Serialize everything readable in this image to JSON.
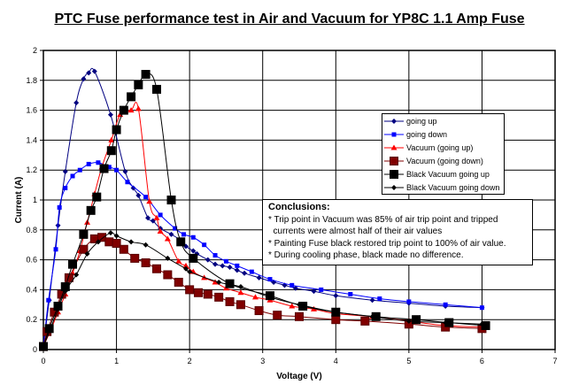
{
  "chart_data": {
    "type": "line",
    "title": "PTC Fuse performance test in Air and Vacuum for YP8C 1.1 Amp Fuse",
    "xlabel": "Voltage (V)",
    "ylabel": "Current (A)",
    "xlim": [
      0,
      7
    ],
    "ylim": [
      0,
      2
    ],
    "xticks": [
      "0",
      "1",
      "2",
      "3",
      "4",
      "5",
      "6",
      "7"
    ],
    "yticks": [
      "0",
      "0.2",
      "0.4",
      "0.6",
      "0.8",
      "1",
      "1.2",
      "1.4",
      "1.6",
      "1.8",
      "2"
    ],
    "grid": true,
    "legend_position": "right",
    "series": [
      {
        "name": "going up",
        "color": "#000080",
        "marker": "diamond",
        "points": [
          [
            0,
            0.02
          ],
          [
            0.08,
            0.33
          ],
          [
            0.2,
            0.83
          ],
          [
            0.3,
            1.19
          ],
          [
            0.45,
            1.65
          ],
          [
            0.55,
            1.81
          ],
          [
            0.62,
            1.85
          ],
          [
            0.7,
            1.86
          ],
          [
            0.92,
            1.57
          ],
          [
            1.12,
            1.19
          ],
          [
            1.23,
            1.08
          ],
          [
            1.3,
            1.03
          ],
          [
            1.43,
            0.88
          ],
          [
            1.5,
            0.86
          ],
          [
            1.6,
            0.81
          ],
          [
            1.75,
            0.77
          ],
          [
            1.88,
            0.73
          ],
          [
            1.95,
            0.69
          ],
          [
            2.05,
            0.66
          ],
          [
            2.1,
            0.64
          ],
          [
            2.25,
            0.6
          ],
          [
            2.35,
            0.57
          ],
          [
            2.45,
            0.56
          ],
          [
            2.55,
            0.55
          ],
          [
            2.65,
            0.53
          ],
          [
            2.75,
            0.51
          ],
          [
            2.95,
            0.48
          ],
          [
            3.15,
            0.45
          ],
          [
            3.3,
            0.43
          ],
          [
            3.45,
            0.41
          ],
          [
            3.7,
            0.39
          ],
          [
            4.0,
            0.36
          ],
          [
            4.5,
            0.33
          ],
          [
            5.0,
            0.31
          ],
          [
            5.5,
            0.29
          ],
          [
            6.0,
            0.28
          ]
        ]
      },
      {
        "name": "going down",
        "color": "#0000FF",
        "marker": "square",
        "points": [
          [
            0,
            0.02
          ],
          [
            0.07,
            0.33
          ],
          [
            0.17,
            0.67
          ],
          [
            0.22,
            0.95
          ],
          [
            0.3,
            1.08
          ],
          [
            0.4,
            1.16
          ],
          [
            0.5,
            1.2
          ],
          [
            0.62,
            1.24
          ],
          [
            0.75,
            1.25
          ],
          [
            0.9,
            1.22
          ],
          [
            1.0,
            1.2
          ],
          [
            1.15,
            1.12
          ],
          [
            1.4,
            1.02
          ],
          [
            1.6,
            0.9
          ],
          [
            1.8,
            0.81
          ],
          [
            1.92,
            0.77
          ],
          [
            2.05,
            0.75
          ],
          [
            2.2,
            0.7
          ],
          [
            2.35,
            0.63
          ],
          [
            2.5,
            0.59
          ],
          [
            2.65,
            0.56
          ],
          [
            2.85,
            0.52
          ],
          [
            3.1,
            0.47
          ],
          [
            3.4,
            0.43
          ],
          [
            3.8,
            0.4
          ],
          [
            4.2,
            0.37
          ],
          [
            4.6,
            0.34
          ],
          [
            5.0,
            0.32
          ],
          [
            5.5,
            0.3
          ],
          [
            6.0,
            0.28
          ]
        ]
      },
      {
        "name": "Vacuum (going up)",
        "color": "#FF0000",
        "marker": "triangle",
        "points": [
          [
            0,
            0.02
          ],
          [
            0.1,
            0.13
          ],
          [
            0.2,
            0.25
          ],
          [
            0.3,
            0.37
          ],
          [
            0.4,
            0.51
          ],
          [
            0.5,
            0.66
          ],
          [
            0.6,
            0.85
          ],
          [
            0.7,
            1.04
          ],
          [
            0.8,
            1.22
          ],
          [
            0.93,
            1.4
          ],
          [
            1.05,
            1.57
          ],
          [
            1.2,
            1.6
          ],
          [
            1.3,
            1.61
          ],
          [
            1.45,
            0.99
          ],
          [
            1.55,
            0.88
          ],
          [
            1.6,
            0.79
          ],
          [
            1.7,
            0.74
          ],
          [
            1.85,
            0.59
          ],
          [
            1.95,
            0.56
          ],
          [
            2.05,
            0.52
          ],
          [
            2.2,
            0.48
          ],
          [
            2.35,
            0.45
          ],
          [
            2.5,
            0.41
          ],
          [
            2.7,
            0.38
          ],
          [
            2.9,
            0.35
          ],
          [
            3.1,
            0.33
          ],
          [
            3.4,
            0.29
          ],
          [
            3.7,
            0.27
          ],
          [
            4.0,
            0.24
          ],
          [
            4.5,
            0.22
          ],
          [
            5.0,
            0.19
          ],
          [
            5.5,
            0.16
          ],
          [
            6.0,
            0.15
          ]
        ]
      },
      {
        "name": "Vacuum (going down)",
        "color": "#800000",
        "marker": "bigsquare",
        "points": [
          [
            0,
            0.02
          ],
          [
            0.05,
            0.12
          ],
          [
            0.15,
            0.25
          ],
          [
            0.25,
            0.37
          ],
          [
            0.35,
            0.48
          ],
          [
            0.55,
            0.67
          ],
          [
            0.7,
            0.74
          ],
          [
            0.8,
            0.75
          ],
          [
            0.9,
            0.72
          ],
          [
            1.0,
            0.71
          ],
          [
            1.1,
            0.67
          ],
          [
            1.25,
            0.61
          ],
          [
            1.4,
            0.58
          ],
          [
            1.55,
            0.54
          ],
          [
            1.7,
            0.5
          ],
          [
            1.85,
            0.45
          ],
          [
            2.0,
            0.4
          ],
          [
            2.12,
            0.38
          ],
          [
            2.25,
            0.37
          ],
          [
            2.4,
            0.35
          ],
          [
            2.55,
            0.32
          ],
          [
            2.7,
            0.3
          ],
          [
            2.95,
            0.26
          ],
          [
            3.2,
            0.23
          ],
          [
            3.5,
            0.22
          ],
          [
            4.0,
            0.2
          ],
          [
            4.4,
            0.19
          ],
          [
            5.0,
            0.17
          ],
          [
            5.5,
            0.15
          ],
          [
            6.0,
            0.14
          ]
        ]
      },
      {
        "name": "Black Vacuum going up",
        "color": "#000000",
        "marker": "bigsquare",
        "points": [
          [
            0,
            0.02
          ],
          [
            0.08,
            0.14
          ],
          [
            0.2,
            0.29
          ],
          [
            0.3,
            0.42
          ],
          [
            0.4,
            0.57
          ],
          [
            0.55,
            0.77
          ],
          [
            0.65,
            0.93
          ],
          [
            0.73,
            1.02
          ],
          [
            0.83,
            1.21
          ],
          [
            0.93,
            1.33
          ],
          [
            1.0,
            1.47
          ],
          [
            1.1,
            1.6
          ],
          [
            1.2,
            1.69
          ],
          [
            1.3,
            1.77
          ],
          [
            1.4,
            1.84
          ],
          [
            1.55,
            1.74
          ],
          [
            1.75,
            1.0
          ],
          [
            1.88,
            0.72
          ],
          [
            2.05,
            0.61
          ],
          [
            2.55,
            0.44
          ],
          [
            3.1,
            0.36
          ],
          [
            3.55,
            0.29
          ],
          [
            4.0,
            0.25
          ],
          [
            4.55,
            0.22
          ],
          [
            5.1,
            0.2
          ],
          [
            5.55,
            0.18
          ],
          [
            6.05,
            0.16
          ]
        ]
      },
      {
        "name": "Black Vacuum going down",
        "color": "#000000",
        "marker": "diamond",
        "points": [
          [
            0,
            0.02
          ],
          [
            0.1,
            0.14
          ],
          [
            0.2,
            0.27
          ],
          [
            0.3,
            0.39
          ],
          [
            0.45,
            0.5
          ],
          [
            0.6,
            0.64
          ],
          [
            0.75,
            0.72
          ],
          [
            0.92,
            0.78
          ],
          [
            1.0,
            0.76
          ],
          [
            1.2,
            0.72
          ],
          [
            1.4,
            0.7
          ],
          [
            1.7,
            0.61
          ],
          [
            1.95,
            0.54
          ],
          [
            2.0,
            0.52
          ],
          [
            2.4,
            0.45
          ],
          [
            2.7,
            0.42
          ],
          [
            3.1,
            0.35
          ],
          [
            3.5,
            0.3
          ],
          [
            4.0,
            0.25
          ],
          [
            4.5,
            0.22
          ],
          [
            5.0,
            0.19
          ],
          [
            5.5,
            0.18
          ],
          [
            6.0,
            0.17
          ]
        ]
      }
    ],
    "annotation": {
      "heading": "Conclusions:",
      "lines": [
        "* Trip point in Vacuum was 85% of air trip point and tripped",
        "  currents were almost half of their air values",
        "* Painting Fuse black restored trip point to 100% of air value.",
        "* During cooling phase, black made no difference."
      ]
    }
  }
}
